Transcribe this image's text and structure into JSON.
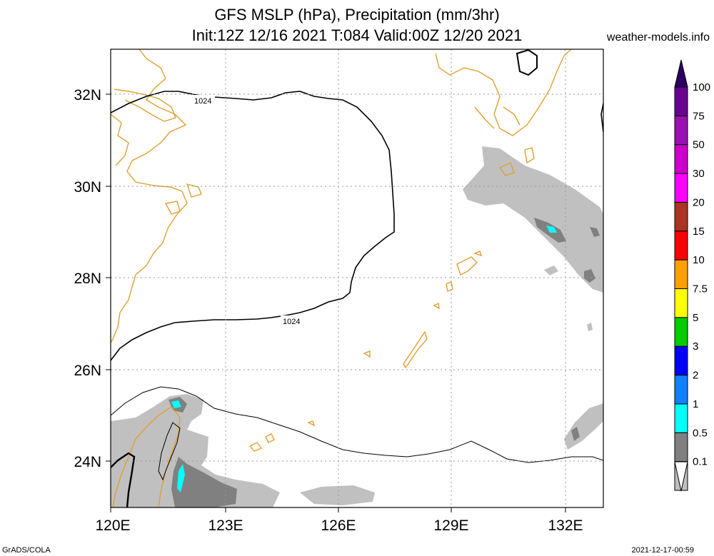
{
  "header": {
    "title_line1": "GFS MSLP (hPa), Precipitation (mm/3hr)",
    "title_line2": "Init:12Z 12/16 2021 T:084 Valid:00Z 12/20 2021",
    "site": "weather-models.info"
  },
  "footer": {
    "left": "GrADS/COLA",
    "right": "2021-12-17-00:59"
  },
  "map": {
    "lon_labels": [
      "120E",
      "123E",
      "126E",
      "129E",
      "132E"
    ],
    "lat_labels": [
      "32N",
      "30N",
      "28N",
      "26N",
      "24N"
    ],
    "isobar_labels": [
      "1024",
      "1024"
    ],
    "colors": {
      "coast": "#e0a030",
      "isobar": "#000000",
      "precip_light": "#c0c0c0",
      "precip_mid": "#808080",
      "precip_cyan": "#00ffff"
    }
  },
  "legend": {
    "labels": [
      "100",
      "75",
      "50",
      "30",
      "20",
      "15",
      "10",
      "7.5",
      "5",
      "3",
      "2",
      "1",
      "0.5",
      "0.1"
    ],
    "colors": [
      "#6a0090",
      "#9a10b0",
      "#cc00cc",
      "#ff00ff",
      "#aa3322",
      "#ff0000",
      "#ffa000",
      "#ffff00",
      "#00cc00",
      "#0000ff",
      "#1080ff",
      "#00ffff",
      "#808080",
      "#c0c0c0"
    ]
  }
}
